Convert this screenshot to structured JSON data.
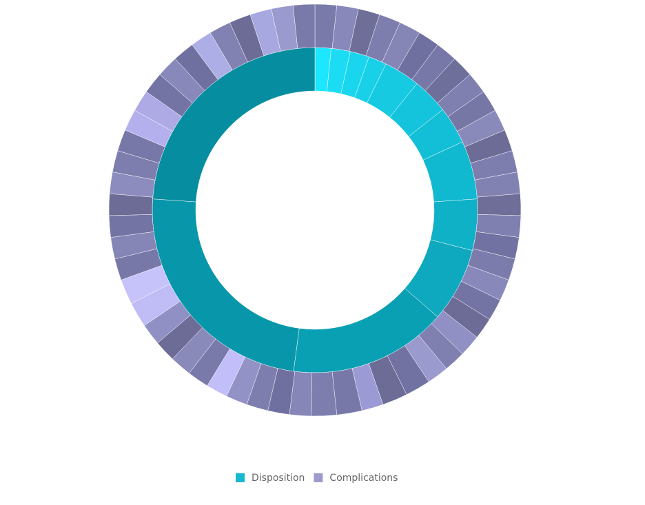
{
  "chart_data": {
    "type": "donut",
    "series": [
      {
        "name": "Disposition",
        "color": "#17b9cf",
        "values": [
          1.6,
          1.9,
          1.9,
          1.8,
          3.6,
          3.6,
          3.7,
          5.8,
          5.1,
          7.4,
          15.7,
          24.0,
          23.9
        ],
        "colors": [
          "#1de6ff",
          "#1bdcf3",
          "#19d6ee",
          "#18d0e8",
          "#16cae2",
          "#14c4dc",
          "#13bfd6",
          "#11b9d0",
          "#0fb1c7",
          "#0ea9be",
          "#0aa0b4",
          "#0897aa",
          "#068ea0"
        ]
      },
      {
        "name": "Complications",
        "color": "#9c9ccc",
        "values": [
          6,
          6,
          6,
          6,
          6,
          6,
          6,
          6,
          6,
          6,
          6,
          6,
          6,
          6,
          6,
          6,
          6,
          6,
          6,
          6,
          6,
          6,
          6,
          6,
          7,
          7,
          6,
          7,
          7,
          6,
          6,
          6,
          6,
          6,
          6,
          6,
          6,
          6,
          7,
          7,
          6,
          6,
          6,
          6,
          6,
          6,
          6,
          6,
          6,
          6,
          6,
          6,
          6,
          6,
          6,
          6,
          6,
          6
        ],
        "colors": [
          "#7a7aaa",
          "#8888bb",
          "#6e6e98",
          "#7e7eae",
          "#8585b6",
          "#7070a0",
          "#7878a8",
          "#6f6f9c",
          "#8080b0",
          "#7777a6",
          "#8a8aba",
          "#6c6c96",
          "#7e7eae",
          "#8282b2",
          "#6e6e98",
          "#8080b0",
          "#7272a2",
          "#7c7cac",
          "#8888bb",
          "#7474a4",
          "#6c6c96",
          "#9090c4",
          "#8080b0",
          "#9a9ace",
          "#7272a2",
          "#6c6c96",
          "#9c9ad4",
          "#7878a8",
          "#7e7eae",
          "#8686b8",
          "#7070a0",
          "#7e7eae",
          "#9292c6",
          "#c2befa",
          "#7a7aaa",
          "#8a8aba",
          "#6c6c96",
          "#9090c4",
          "#c0bcf6",
          "#c6c2fa",
          "#7878a8",
          "#8585b6",
          "#7474a4",
          "#6c6c96",
          "#8c8cbe",
          "#7e7eae",
          "#7878a8",
          "#b4b0ee",
          "#aeaae6",
          "#7474a4",
          "#8888bb",
          "#7070a0",
          "#aeaee6",
          "#8282b2",
          "#6c6c96",
          "#a8a8e0",
          "#9a9ace",
          "#7a7aaa"
        ]
      }
    ]
  }
}
